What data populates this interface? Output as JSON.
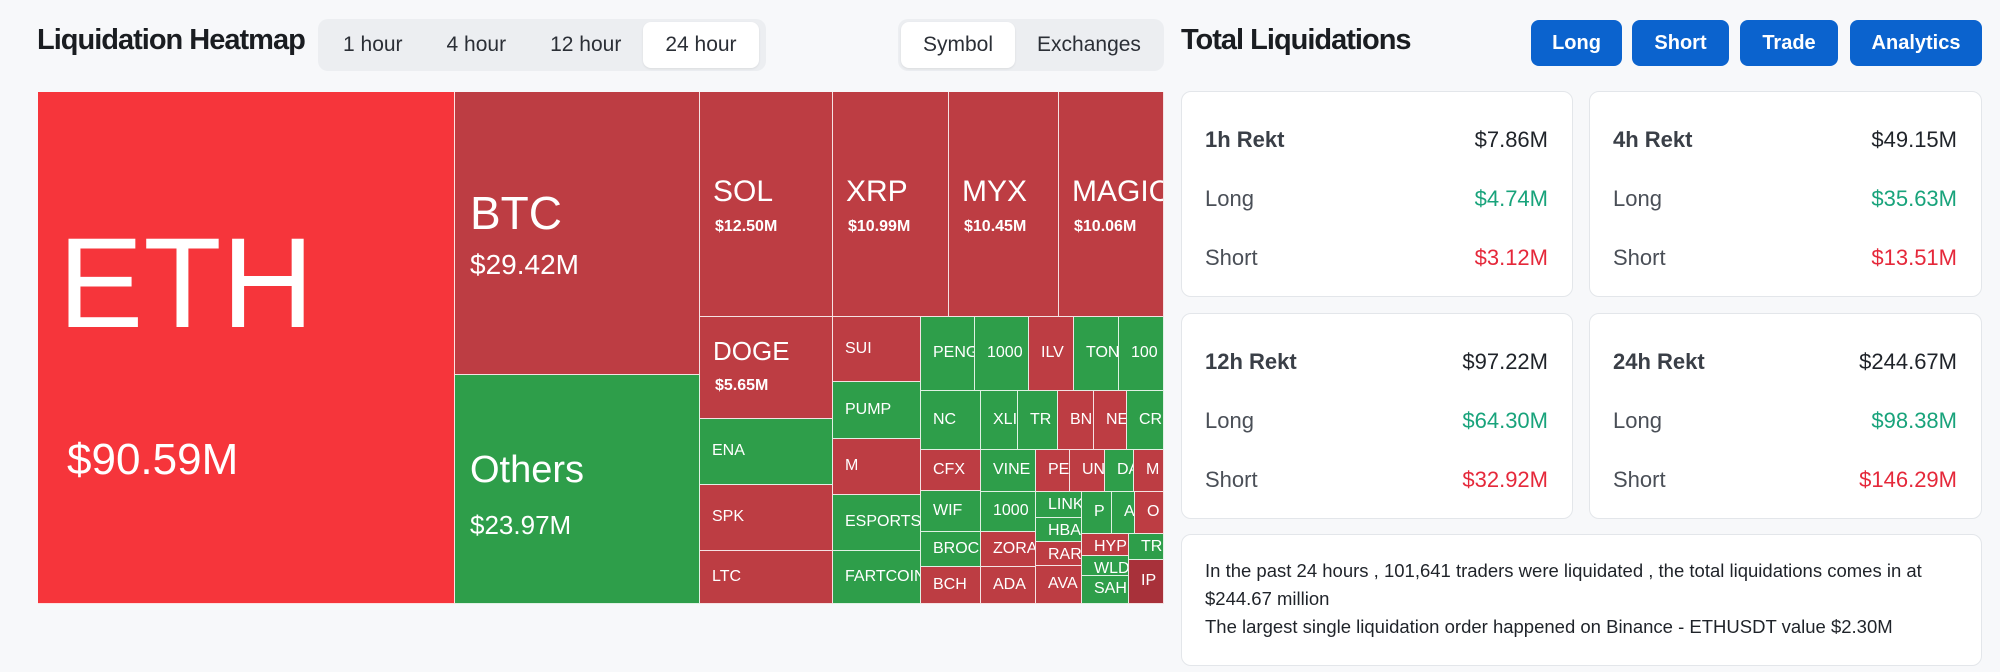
{
  "heatmap": {
    "title": "Liquidation Heatmap",
    "time_tabs": [
      "1 hour",
      "4 hour",
      "12 hour",
      "24 hour"
    ],
    "active_time_tab": "24 hour",
    "view_tabs": [
      "Symbol",
      "Exchanges"
    ],
    "active_view_tab": "Symbol",
    "colors": {
      "bright_red": "#f6353b",
      "red": "#bd3d43",
      "green": "#2e9e4a",
      "dark_red": "#a8313a"
    },
    "tiles": [
      {
        "symbol": "ETH",
        "value": "$90.59M",
        "color": "bright_red"
      },
      {
        "symbol": "BTC",
        "value": "$29.42M",
        "color": "red"
      },
      {
        "symbol": "Others",
        "value": "$23.97M",
        "color": "green"
      },
      {
        "symbol": "SOL",
        "value": "$12.50M",
        "color": "red"
      },
      {
        "symbol": "XRP",
        "value": "$10.99M",
        "color": "red"
      },
      {
        "symbol": "MYX",
        "value": "$10.45M",
        "color": "red"
      },
      {
        "symbol": "MAGIC",
        "value": "$10.06M",
        "color": "red"
      },
      {
        "symbol": "DOGE",
        "value": "$5.65M",
        "color": "red"
      },
      {
        "symbol": "ENA",
        "value": "",
        "color": "green"
      },
      {
        "symbol": "SPK",
        "value": "",
        "color": "red"
      },
      {
        "symbol": "LTC",
        "value": "",
        "color": "red"
      },
      {
        "symbol": "SUI",
        "value": "",
        "color": "red"
      },
      {
        "symbol": "PUMP",
        "value": "",
        "color": "green"
      },
      {
        "symbol": "M",
        "value": "",
        "color": "red"
      },
      {
        "symbol": "ESPORTS",
        "value": "",
        "color": "green"
      },
      {
        "symbol": "FARTCOIN",
        "value": "",
        "color": "green"
      },
      {
        "symbol": "PENG",
        "value": "",
        "color": "green"
      },
      {
        "symbol": "1000",
        "value": "",
        "color": "green"
      },
      {
        "symbol": "ILV",
        "value": "",
        "color": "red"
      },
      {
        "symbol": "TON",
        "value": "",
        "color": "green"
      },
      {
        "symbol": "100",
        "value": "",
        "color": "green"
      },
      {
        "symbol": "NC",
        "value": "",
        "color": "green"
      },
      {
        "symbol": "XLI",
        "value": "",
        "color": "green"
      },
      {
        "symbol": "TR",
        "value": "",
        "color": "green"
      },
      {
        "symbol": "BN",
        "value": "",
        "color": "red"
      },
      {
        "symbol": "NE",
        "value": "",
        "color": "red"
      },
      {
        "symbol": "CR",
        "value": "",
        "color": "green"
      },
      {
        "symbol": "CFX",
        "value": "",
        "color": "red"
      },
      {
        "symbol": "VINE",
        "value": "",
        "color": "green"
      },
      {
        "symbol": "PE",
        "value": "",
        "color": "red"
      },
      {
        "symbol": "UN",
        "value": "",
        "color": "red"
      },
      {
        "symbol": "DA",
        "value": "",
        "color": "green"
      },
      {
        "symbol": "M",
        "value": "",
        "color": "red"
      },
      {
        "symbol": "WIF",
        "value": "",
        "color": "green"
      },
      {
        "symbol": "1000",
        "value": "",
        "color": "green"
      },
      {
        "symbol": "LINK",
        "value": "",
        "color": "green"
      },
      {
        "symbol": "P",
        "value": "",
        "color": "green"
      },
      {
        "symbol": "A",
        "value": "",
        "color": "green"
      },
      {
        "symbol": "O",
        "value": "",
        "color": "red"
      },
      {
        "symbol": "BROC",
        "value": "",
        "color": "green"
      },
      {
        "symbol": "HBA",
        "value": "",
        "color": "green"
      },
      {
        "symbol": "ZORA",
        "value": "",
        "color": "red"
      },
      {
        "symbol": "HYP",
        "value": "",
        "color": "red"
      },
      {
        "symbol": "TR",
        "value": "",
        "color": "green"
      },
      {
        "symbol": "RAR",
        "value": "",
        "color": "red"
      },
      {
        "symbol": "WLD",
        "value": "",
        "color": "green"
      },
      {
        "symbol": "BCH",
        "value": "",
        "color": "red"
      },
      {
        "symbol": "ADA",
        "value": "",
        "color": "red"
      },
      {
        "symbol": "AVA",
        "value": "",
        "color": "red"
      },
      {
        "symbol": "SAH",
        "value": "",
        "color": "green"
      },
      {
        "symbol": "IP",
        "value": "",
        "color": "dark_red"
      }
    ]
  },
  "total": {
    "title": "Total Liquidations",
    "buttons": [
      "Long",
      "Short",
      "Trade",
      "Analytics"
    ],
    "cards": [
      {
        "label": "1h Rekt",
        "total": "$7.86M",
        "long_label": "Long",
        "long": "$4.74M",
        "short_label": "Short",
        "short": "$3.12M"
      },
      {
        "label": "4h Rekt",
        "total": "$49.15M",
        "long_label": "Long",
        "long": "$35.63M",
        "short_label": "Short",
        "short": "$13.51M"
      },
      {
        "label": "12h Rekt",
        "total": "$97.22M",
        "long_label": "Long",
        "long": "$64.30M",
        "short_label": "Short",
        "short": "$32.92M"
      },
      {
        "label": "24h Rekt",
        "total": "$244.67M",
        "long_label": "Long",
        "long": "$98.38M",
        "short_label": "Short",
        "short": "$146.29M"
      }
    ],
    "summary_line1": "In the past 24 hours , 101,641 traders were liquidated , the total liquidations comes in at $244.67 million",
    "summary_line2": "The largest single liquidation order happened on Binance - ETHUSDT value $2.30M"
  }
}
